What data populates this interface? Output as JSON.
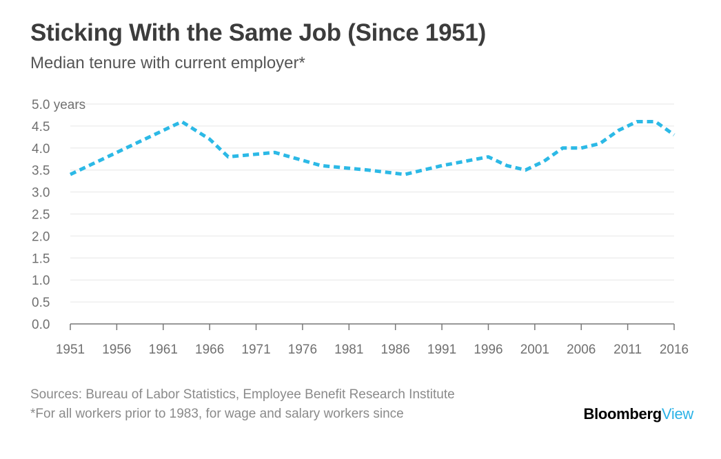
{
  "colors": {
    "line": "#2cb9e6",
    "grid": "#e6e6e6",
    "axis": "#777777",
    "tick_text": "#707070",
    "brand_accent": "#2bb2e6"
  },
  "footer": {
    "sources": "Sources: Bureau of Labor Statistics, Employee Benefit Research Institute",
    "note": "*For all workers prior to 1983, for wage and salary workers since"
  },
  "brand": {
    "part1": "Bloomberg",
    "part2": "View"
  },
  "chart_data": {
    "type": "line",
    "title": "Sticking With the Same Job (Since 1951)",
    "subtitle": "Median tenure with current employer*",
    "xlabel": "",
    "ylabel": "",
    "xlim": [
      1951,
      2016
    ],
    "ylim": [
      0,
      5
    ],
    "x_ticks": [
      1951,
      1956,
      1961,
      1966,
      1971,
      1976,
      1981,
      1986,
      1991,
      1996,
      2001,
      2006,
      2011,
      2016
    ],
    "y_ticks": [
      0,
      0.5,
      1,
      1.5,
      2,
      2.5,
      3,
      3.5,
      4,
      4.5,
      5
    ],
    "y_tick_labels": [
      "0.0",
      "0.5",
      "1.0",
      "1.5",
      "2.0",
      "2.5",
      "3.0",
      "3.5",
      "4.0",
      "4.5",
      "5.0 years"
    ],
    "grid": true,
    "line_style": "dashed",
    "series": [
      {
        "x": [
          1951,
          1963,
          1966,
          1968,
          1973,
          1978,
          1983,
          1987,
          1991,
          1996,
          1998,
          2000,
          2002,
          2004,
          2006,
          2008,
          2010,
          2012,
          2014,
          2016
        ],
        "y": [
          3.4,
          4.6,
          4.2,
          3.8,
          3.9,
          3.6,
          3.5,
          3.4,
          3.6,
          3.8,
          3.6,
          3.5,
          3.7,
          4.0,
          4.0,
          4.1,
          4.4,
          4.6,
          4.6,
          4.3
        ]
      }
    ]
  }
}
